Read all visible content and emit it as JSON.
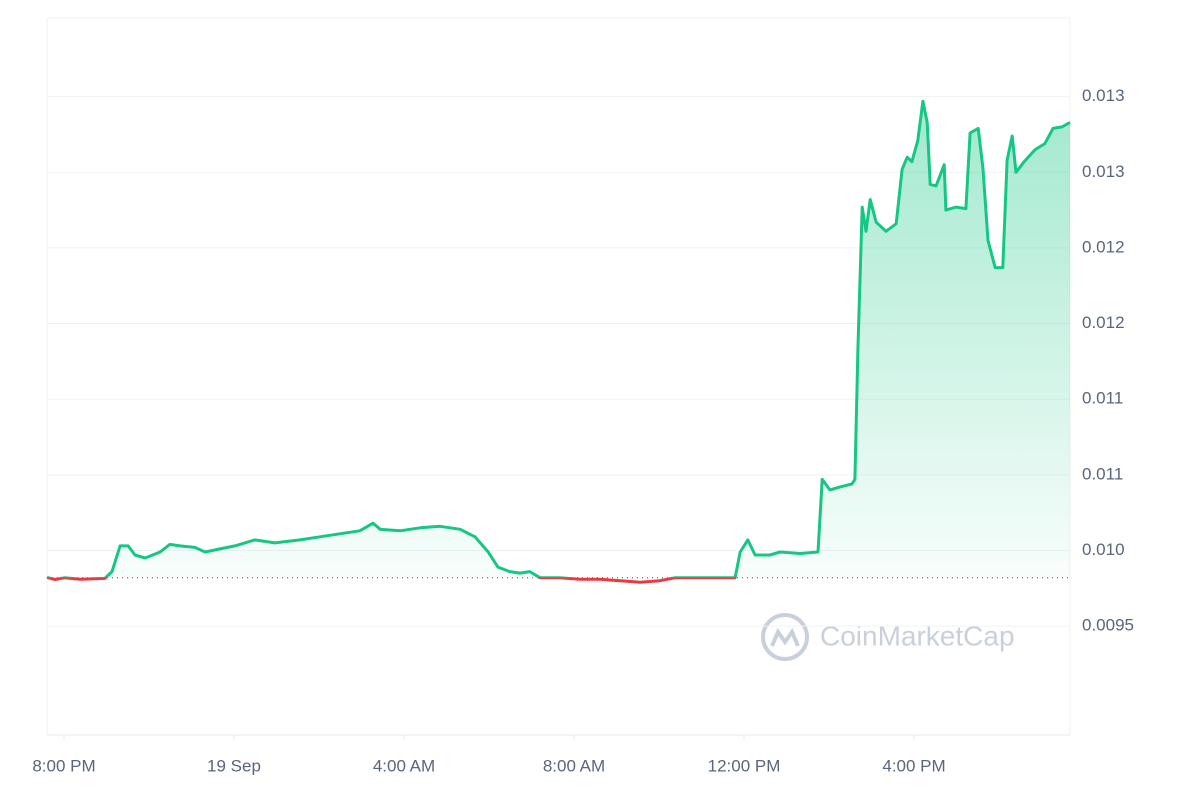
{
  "chart_data": {
    "type": "line",
    "x": [
      -0.4,
      -0.21,
      0.02,
      0.38,
      0.96,
      1.13,
      1.32,
      1.51,
      1.67,
      1.91,
      2.26,
      2.49,
      2.73,
      3.08,
      3.32,
      3.67,
      4.02,
      4.49,
      4.96,
      5.55,
      6.02,
      6.49,
      6.96,
      7.27,
      7.44,
      7.91,
      8.38,
      8.85,
      9.32,
      9.67,
      9.98,
      10.21,
      10.49,
      10.73,
      10.96,
      11.2,
      11.67,
      12.14,
      12.61,
      13.08,
      13.55,
      14.02,
      14.38,
      14.96,
      15.44,
      15.79,
      15.91,
      16.09,
      16.26,
      16.61,
      16.85,
      17.32,
      17.74,
      17.84,
      18.02,
      18.26,
      18.54,
      18.61,
      18.68,
      18.78,
      18.87,
      18.97,
      19.11,
      19.34,
      19.58,
      19.72,
      19.84,
      19.95,
      20.09,
      20.21,
      20.31,
      20.38,
      20.52,
      20.71,
      20.75,
      20.99,
      21.22,
      21.32,
      21.51,
      21.62,
      21.74,
      21.91,
      22.09,
      22.19,
      22.31,
      22.4,
      22.59,
      22.85,
      23.08,
      23.27,
      23.48,
      23.67
    ],
    "values": [
      0.009822,
      0.009808,
      0.00982,
      0.00981,
      0.009815,
      0.00986,
      0.01003,
      0.01003,
      0.00997,
      0.00995,
      0.00999,
      0.01004,
      0.01003,
      0.01002,
      0.00999,
      0.01001,
      0.01003,
      0.01007,
      0.01005,
      0.01007,
      0.01009,
      0.01011,
      0.01013,
      0.01018,
      0.01014,
      0.01013,
      0.01015,
      0.01016,
      0.01014,
      0.01009,
      0.00999,
      0.00989,
      0.00986,
      0.00985,
      0.00986,
      0.00982,
      0.00982,
      0.00981,
      0.00981,
      0.0098,
      0.00979,
      0.0098,
      0.00982,
      0.00982,
      0.00982,
      0.00982,
      0.00999,
      0.01007,
      0.00997,
      0.00997,
      0.00999,
      0.00998,
      0.00999,
      0.01047,
      0.0104,
      0.01042,
      0.01044,
      0.01047,
      0.01133,
      0.01227,
      0.01211,
      0.01232,
      0.01217,
      0.01211,
      0.01216,
      0.01252,
      0.0126,
      0.01257,
      0.01271,
      0.01297,
      0.01283,
      0.01242,
      0.01241,
      0.01255,
      0.01225,
      0.01227,
      0.01226,
      0.01276,
      0.01279,
      0.01253,
      0.01205,
      0.01187,
      0.01187,
      0.01258,
      0.01274,
      0.0125,
      0.01257,
      0.01265,
      0.01269,
      0.01279,
      0.0128,
      0.01283
    ],
    "baseline": 0.00982,
    "color": "#16c784",
    "down_color": "#ea3943",
    "xlim": [
      -0.4,
      23.67
    ],
    "xticks": [
      {
        "value": 0,
        "label": "8:00 PM"
      },
      {
        "value": 4,
        "label": "19 Sep"
      },
      {
        "value": 8,
        "label": "4:00 AM"
      },
      {
        "value": 12,
        "label": "8:00 AM"
      },
      {
        "value": 16,
        "label": "12:00 PM"
      },
      {
        "value": 20,
        "label": "4:00 PM"
      }
    ],
    "ylim": [
      0.00878,
      0.01352
    ],
    "yticks": [
      {
        "value": 0.0095,
        "label": "0.0095"
      },
      {
        "value": 0.01,
        "label": "0.010"
      },
      {
        "value": 0.0105,
        "label": "0.011"
      },
      {
        "value": 0.011,
        "label": "0.011"
      },
      {
        "value": 0.0115,
        "label": "0.012"
      },
      {
        "value": 0.012,
        "label": "0.012"
      },
      {
        "value": 0.0125,
        "label": "0.013"
      },
      {
        "value": 0.013,
        "label": "0.013"
      }
    ],
    "grid": true,
    "watermark": "CoinMarketCap"
  }
}
